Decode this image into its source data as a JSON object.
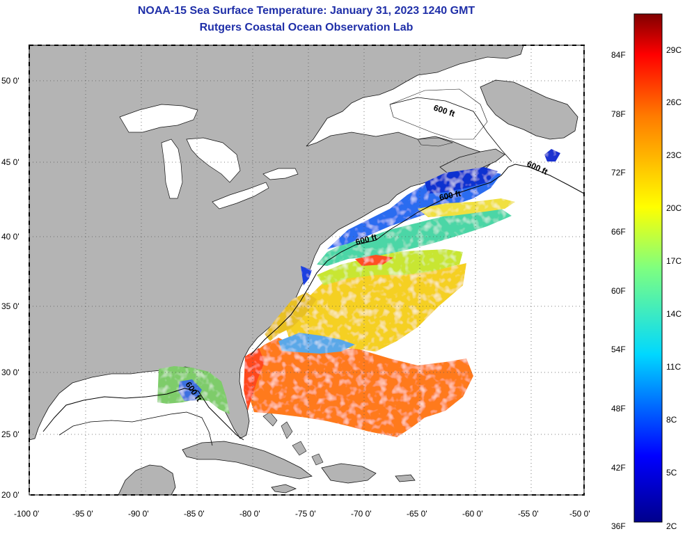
{
  "title": {
    "line1": "NOAA-15 Sea Surface Temperature:  January 31, 2023 1240 GMT",
    "line2": "Rutgers Coastal Ocean Observation Lab"
  },
  "map": {
    "lat_labels": [
      "50 0'",
      "45 0'",
      "40 0'",
      "35 0'",
      "30 0'",
      "25 0'",
      "20 0'"
    ],
    "lon_labels": [
      "-100 0'",
      "-95 0'",
      "-90 0'",
      "-85 0'",
      "-80 0'",
      "-75 0'",
      "-70 0'",
      "-65 0'",
      "-60 0'",
      "-55 0'",
      "-50 0'"
    ],
    "contour_labels": [
      "600 ft",
      "600 ft",
      "600 ft",
      "600 ft",
      "600 ft"
    ],
    "land_color": "#b4b4b4",
    "ocean_color": "#ffffff"
  },
  "colorbar": {
    "fahrenheit": [
      "84F",
      "78F",
      "72F",
      "66F",
      "60F",
      "54F",
      "48F",
      "42F",
      "36F"
    ],
    "celsius": [
      "29C",
      "26C",
      "23C",
      "20C",
      "17C",
      "14C",
      "11C",
      "8C",
      "5C",
      "2C"
    ]
  }
}
